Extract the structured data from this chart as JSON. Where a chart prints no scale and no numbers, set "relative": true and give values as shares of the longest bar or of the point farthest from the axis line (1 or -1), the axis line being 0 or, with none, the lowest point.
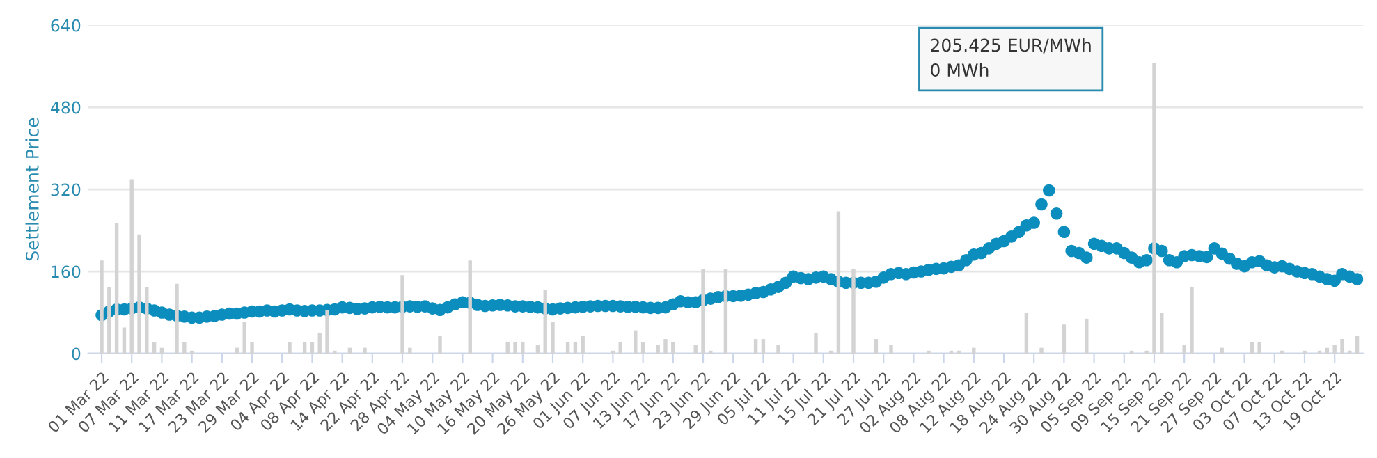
{
  "chart_data": [
    {
      "type": "scatter",
      "ylabel": "Settlement Price",
      "annotations": [
        "205.425 EUR/MWh\n0 MWh"
      ],
      "categories": [
        "01 Mar 22",
        null,
        null,
        null,
        "07 Mar 22",
        null,
        null,
        null,
        "11 Mar 22",
        null,
        null,
        null,
        "17 Mar 22",
        null,
        null,
        null,
        "23 Mar 22",
        null,
        null,
        null,
        "29 Mar 22",
        null,
        null,
        null,
        "04 Apr 22",
        null,
        null,
        null,
        "08 Apr 22",
        null,
        null,
        null,
        "14 Apr 22",
        null,
        null,
        null,
        "22 Apr 22",
        null,
        null,
        null,
        "28 Apr 22",
        null,
        null,
        null,
        "04 May 22",
        null,
        null,
        null,
        "10 May 22",
        null,
        null,
        null,
        "16 May 22",
        null,
        null,
        null,
        "20 May 22",
        null,
        null,
        null,
        "26 May 22",
        null,
        null,
        null,
        "01 Jun 22",
        null,
        null,
        null,
        "07 Jun 22",
        null,
        null,
        null,
        "13 Jun 22",
        null,
        null,
        null,
        "17 Jun 22",
        null,
        null,
        null,
        "23 Jun 22",
        null,
        null,
        null,
        "29 Jun 22",
        null,
        null,
        null,
        "05 Jul 22",
        null,
        null,
        null,
        "11 Jul 22",
        null,
        null,
        null,
        "15 Jul 22",
        null,
        null,
        null,
        "21 Jul 22",
        null,
        null,
        null,
        "27 Jul 22",
        null,
        null,
        null,
        "02 Aug 22",
        null,
        null,
        null,
        "08 Aug 22",
        null,
        null,
        null,
        "12 Aug 22",
        null,
        null,
        null,
        "18 Aug 22",
        null,
        null,
        null,
        "24 Aug 22",
        null,
        null,
        null,
        "30 Aug 22",
        null,
        null,
        null,
        "05 Sep 22",
        null,
        null,
        null,
        "09 Sep 22",
        null,
        null,
        null,
        "15 Sep 22",
        null,
        null,
        null,
        "21 Sep 22",
        null,
        null,
        null,
        "27 Sep 22",
        null,
        null,
        null,
        "03 Oct 22",
        null,
        null,
        null,
        "07 Oct 22",
        null,
        null,
        null,
        "13 Oct 22",
        null,
        null,
        null,
        "19 Oct 22",
        null,
        null,
        null
      ],
      "series": [
        {
          "color": "#0b8dbd",
          "values": [
            75,
            82,
            86,
            86,
            88,
            90,
            88,
            84,
            80,
            76,
            74,
            72,
            70,
            70,
            72,
            73,
            76,
            78,
            78,
            80,
            82,
            82,
            84,
            82,
            84,
            86,
            84,
            83,
            84,
            84,
            85,
            86,
            90,
            89,
            87,
            88,
            90,
            91,
            90,
            90,
            91,
            92,
            91,
            92,
            88,
            85,
            90,
            96,
            100,
            99,
            95,
            93,
            94,
            95,
            94,
            92,
            92,
            91,
            90,
            88,
            86,
            88,
            89,
            90,
            91,
            92,
            93,
            93,
            93,
            92,
            91,
            91,
            90,
            89,
            89,
            90,
            96,
            102,
            100,
            100,
            104,
            107,
            110,
            112,
            112,
            113,
            115,
            118,
            120,
            125,
            130,
            138,
            150,
            147,
            145,
            148,
            150,
            145,
            140,
            138,
            138,
            138,
            138,
            140,
            148,
            155,
            157,
            155,
            158,
            160,
            163,
            165,
            166,
            169,
            172,
            182,
            193,
            196,
            205,
            214,
            219,
            228,
            237,
            250,
            255,
            291,
            318,
            273,
            237,
            200,
            196,
            187,
            214,
            210,
            205,
            205,
            196,
            187,
            178,
            182,
            205,
            200,
            182,
            178,
            190,
            192,
            190,
            188,
            205,
            195,
            185,
            175,
            170,
            178,
            180,
            172,
            168,
            170,
            165,
            160,
            157,
            155,
            150,
            145,
            142,
            155,
            150,
            145
          ]
        }
      ],
      "ylim": [
        0,
        640
      ],
      "yticks": [
        0,
        160,
        320,
        480,
        640
      ],
      "grid": "y",
      "marker": "circle"
    },
    {
      "type": "bar",
      "relative": true,
      "tick_labels": false,
      "categories": [
        null,
        null,
        null,
        null,
        null,
        null,
        null,
        null,
        null,
        null,
        null,
        null,
        null,
        null,
        null,
        null,
        null,
        null,
        null,
        null,
        null,
        null,
        null,
        null,
        null,
        null,
        null,
        null,
        null,
        null,
        null,
        null,
        null,
        null,
        null,
        null,
        null,
        null,
        null,
        null,
        null,
        null,
        null,
        null,
        null,
        null,
        null,
        null,
        null,
        null,
        null,
        null,
        null,
        null,
        null,
        null,
        null,
        null,
        null,
        null,
        null,
        null,
        null,
        null,
        null,
        null,
        null,
        null,
        null,
        null,
        null,
        null,
        null,
        null,
        null,
        null,
        null,
        null,
        null,
        null,
        null,
        null,
        null,
        null,
        null,
        null,
        null,
        null,
        null,
        null,
        null,
        null,
        null,
        null,
        null,
        null,
        null,
        null,
        null,
        null,
        null,
        null,
        null,
        null,
        null,
        null,
        null,
        null,
        null,
        null,
        null,
        null,
        null,
        null,
        null,
        null,
        null,
        null,
        null,
        null,
        null,
        null,
        null,
        null,
        null,
        null,
        null,
        null,
        null,
        null,
        null,
        null,
        null,
        null,
        null,
        null,
        null,
        null,
        null,
        null,
        null,
        null,
        null,
        null,
        null,
        null,
        null,
        null,
        null,
        null,
        null,
        null,
        null,
        null,
        null,
        null,
        null,
        null,
        null,
        null,
        null,
        null,
        null,
        null,
        null,
        null,
        null,
        null
      ],
      "color": "#d3d3d3",
      "values": [
        0.32,
        0.23,
        0.45,
        0.09,
        0.6,
        0.41,
        0.23,
        0.04,
        0.02,
        0,
        0.24,
        0.04,
        0.01,
        0,
        0,
        0,
        0,
        0,
        0.02,
        0.11,
        0.04,
        0,
        0,
        0,
        0,
        0.04,
        0,
        0.04,
        0.04,
        0.07,
        0.15,
        0.01,
        0,
        0.02,
        0,
        0.02,
        0,
        0,
        0,
        0,
        0.27,
        0.02,
        0,
        0,
        0,
        0.06,
        0,
        0,
        0,
        0.32,
        0,
        0,
        0,
        0,
        0.04,
        0.04,
        0.04,
        0,
        0.03,
        0.22,
        0.11,
        0,
        0.04,
        0.04,
        0.06,
        0,
        0,
        0,
        0.01,
        0.04,
        0,
        0.08,
        0.04,
        0,
        0.03,
        0.05,
        0.04,
        0,
        0,
        0.03,
        0.29,
        0.01,
        0,
        0.29,
        0,
        0,
        0,
        0.05,
        0.05,
        0,
        0.03,
        0,
        0,
        0,
        0,
        0.07,
        0,
        0.01,
        0.49,
        0,
        0.29,
        0,
        0,
        0.05,
        0,
        0.03,
        0,
        0,
        0,
        0,
        0.01,
        0,
        0,
        0.01,
        0.01,
        0,
        0.02,
        0,
        0,
        0,
        0,
        0,
        0,
        0.14,
        0,
        0.02,
        0,
        0,
        0.1,
        0,
        0,
        0.12,
        0,
        0,
        0,
        0,
        0,
        0.01,
        0,
        0.01,
        1,
        0.14,
        0,
        0,
        0.03,
        0.23,
        0,
        0,
        0,
        0.02,
        0,
        0,
        0,
        0.04,
        0.04,
        0,
        0,
        0.01,
        0,
        0,
        0.01,
        0,
        0.01,
        0.02,
        0.03,
        0.05,
        0.01,
        0.06
      ]
    }
  ]
}
